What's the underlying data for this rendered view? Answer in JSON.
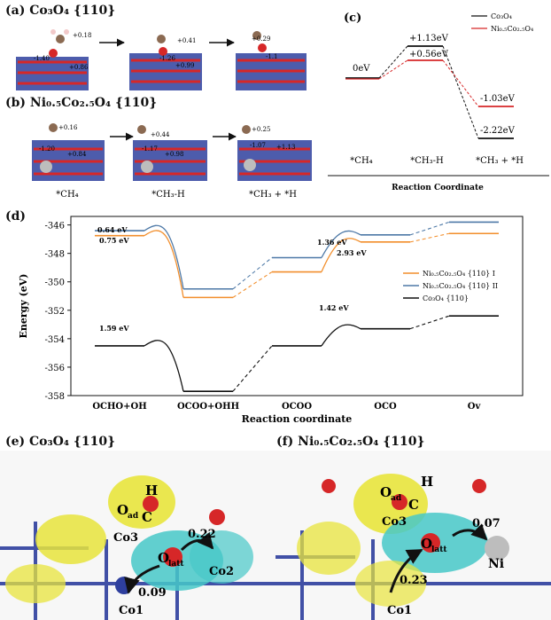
{
  "panel_a": {
    "label": "(a) Co₃O₄ {110}",
    "charges": [
      "+0.18",
      "-1.40",
      "+0.86",
      "+0.41",
      "-1.26",
      "+0.99",
      "+0.29",
      "-1.1"
    ]
  },
  "panel_b": {
    "label": "(b) Ni₀.₅Co₂.₅O₄ {110}",
    "charges": [
      "+0.16",
      "-1.20",
      "+0.84",
      "+0.44",
      "-1.17",
      "+0.98",
      "+0.25",
      "-1.07",
      "+1.13"
    ],
    "states": [
      "*CH₄",
      "*CH₃-H",
      "*CH₃ + *H"
    ]
  },
  "panel_c": {
    "label": "(c)",
    "legend": [
      "Co₃O₄",
      "Ni₀.₅Co₂.₅O₄"
    ],
    "values": [
      "0eV",
      "+1.13eV",
      "+0.56eV",
      "-1.03eV",
      "-2.22eV"
    ],
    "xticks": [
      "*CH₄",
      "*CH₃-H",
      "*CH₃ + *H"
    ],
    "xlabel": "Reaction Coordinate",
    "colors": {
      "co3o4": "#111111",
      "ni": "#d62728"
    }
  },
  "chart_data": {
    "type": "line",
    "title": "",
    "xlabel": "Reaction coordinate",
    "ylabel": "Energy (eV)",
    "categories": [
      "OCHO+OH",
      "OCOO+OHH",
      "OCOO",
      "OCO",
      "Ov"
    ],
    "ylim": [
      -358,
      -345.4
    ],
    "yticks": [
      -346,
      -348,
      -350,
      -352,
      -354,
      -356,
      -358
    ],
    "series": [
      {
        "name": "Ni₀.₅Co₂.₅O₄ {110} I",
        "color": "#f28e2b",
        "values": [
          -346.75,
          -351.1,
          -349.3,
          -347.2,
          -346.6
        ]
      },
      {
        "name": "Ni₀.₅Co₂.₅O₄ {110} II",
        "color": "#4e79a7",
        "values": [
          -346.4,
          -350.5,
          -348.3,
          -346.7,
          -345.8
        ]
      },
      {
        "name": "Co₃O₄ {110}",
        "color": "#111111",
        "values": [
          -354.5,
          -357.7,
          -354.5,
          -353.3,
          -352.4
        ]
      }
    ],
    "barriers": [
      "0.64 eV",
      "0.75 eV",
      "1.59 eV",
      "1.36 eV",
      "2.93 eV",
      "1.42 eV"
    ]
  },
  "panel_d": {
    "label": "(d)"
  },
  "panel_e": {
    "label": "(e) Co₃O₄ {110}",
    "atoms": [
      "H",
      "O",
      "ad",
      "C",
      "Co3",
      "O",
      "latt",
      "Co2",
      "Co1"
    ],
    "values": [
      "0.22",
      "0.09"
    ]
  },
  "panel_f": {
    "label": "(f) Ni₀.₅Co₂.₅O₄ {110}",
    "atoms": [
      "H",
      "O",
      "ad",
      "C",
      "Co3",
      "O",
      "latt",
      "Ni",
      "Co1"
    ],
    "values": [
      "0.07",
      "0.23"
    ]
  }
}
